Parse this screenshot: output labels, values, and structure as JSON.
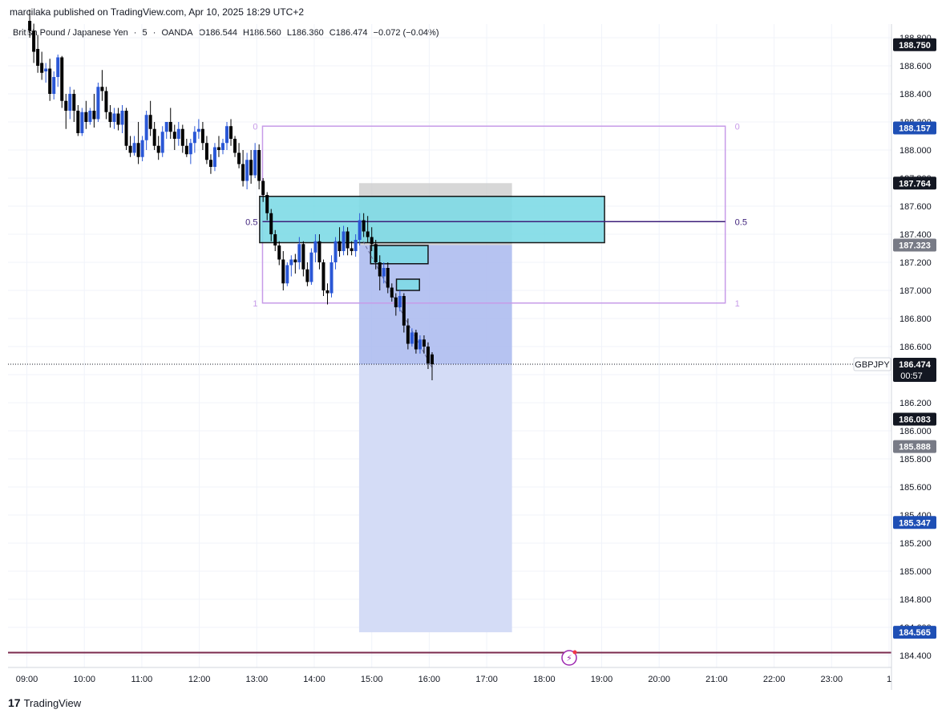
{
  "publisher_line": "marcilaka published on TradingView.com, Apr 10, 2025 18:29 UTC+2",
  "legend": {
    "symbol": "British Pound / Japanese Yen",
    "interval": "5",
    "exchange": "OANDA",
    "open": "O186.544",
    "high": "H186.560",
    "low": "L186.360",
    "close": "C186.474",
    "change": "−0.072 (−0.04%)"
  },
  "footer": {
    "brand": "TradingView",
    "logo": "17"
  },
  "colors": {
    "up": "#2a57d6",
    "down": "#000000",
    "fib": "#c79be8",
    "fib_mid": "#3d1f7a",
    "zone_fill": "#7fdbe6",
    "short_target": "#a9b8ee",
    "short_target_light": "#d2daf5",
    "short_stop": "#c9c9c9",
    "price_line": "#7b2a4d",
    "label_blue": "#1e4fb5",
    "label_black": "#131722",
    "label_gray": "#787b86"
  },
  "chart_data": {
    "type": "candlestick",
    "symbol": "GBPJPY",
    "x_ticks": [
      "09:00",
      "10:00",
      "11:00",
      "12:00",
      "13:00",
      "14:00",
      "15:00",
      "16:00",
      "17:00",
      "18:00",
      "19:00",
      "20:00",
      "21:00",
      "22:00",
      "23:00",
      "1"
    ],
    "y_ticks": [
      "188.800",
      "188.600",
      "188.400",
      "188.200",
      "188.000",
      "187.800",
      "187.600",
      "187.400",
      "187.200",
      "187.000",
      "186.800",
      "186.600",
      "186.400",
      "186.200",
      "186.000",
      "185.800",
      "185.600",
      "185.400",
      "185.200",
      "185.000",
      "184.800",
      "184.600",
      "184.400"
    ],
    "ylim": [
      184.35,
      188.87
    ],
    "price_labels": [
      {
        "text": "188.750",
        "value": 188.75,
        "style": "black"
      },
      {
        "text": "188.157",
        "value": 188.157,
        "style": "blue"
      },
      {
        "text": "187.764",
        "value": 187.764,
        "style": "black"
      },
      {
        "text": "187.323",
        "value": 187.323,
        "style": "gray"
      },
      {
        "text": "186.083",
        "value": 186.083,
        "style": "black"
      },
      {
        "text": "185.888",
        "value": 185.888,
        "style": "gray"
      },
      {
        "text": "185.347",
        "value": 185.347,
        "style": "blue"
      },
      {
        "text": "184.565",
        "value": 184.565,
        "style": "blue"
      }
    ],
    "last_price": {
      "symbol": "GBPJPY",
      "price": "186.474",
      "value": 186.474,
      "countdown": "00:57"
    },
    "candles": [
      {
        "t": 0.05,
        "o": 188.92,
        "h": 189.0,
        "c": 188.85,
        "l": 188.8
      },
      {
        "t": 0.12,
        "o": 188.85,
        "h": 188.9,
        "c": 188.7,
        "l": 188.62
      },
      {
        "t": 0.19,
        "o": 188.72,
        "h": 188.82,
        "c": 188.6,
        "l": 188.55
      },
      {
        "t": 0.26,
        "o": 188.62,
        "h": 188.7,
        "c": 188.55,
        "l": 188.5
      },
      {
        "t": 0.33,
        "o": 188.56,
        "h": 188.62,
        "c": 188.58,
        "l": 188.48
      },
      {
        "t": 0.4,
        "o": 188.58,
        "h": 188.65,
        "c": 188.4,
        "l": 188.35
      },
      {
        "t": 0.47,
        "o": 188.4,
        "h": 188.56,
        "c": 188.52,
        "l": 188.36
      },
      {
        "t": 0.54,
        "o": 188.52,
        "h": 188.68,
        "c": 188.66,
        "l": 188.45
      },
      {
        "t": 0.61,
        "o": 188.66,
        "h": 188.67,
        "c": 188.35,
        "l": 188.3
      },
      {
        "t": 0.68,
        "o": 188.35,
        "h": 188.4,
        "c": 188.28,
        "l": 188.15
      },
      {
        "t": 0.75,
        "o": 188.28,
        "h": 188.45,
        "c": 188.4,
        "l": 188.22
      },
      {
        "t": 0.82,
        "o": 188.4,
        "h": 188.43,
        "c": 188.28,
        "l": 188.2
      },
      {
        "t": 0.89,
        "o": 188.28,
        "h": 188.32,
        "c": 188.12,
        "l": 188.1
      },
      {
        "t": 0.96,
        "o": 188.12,
        "h": 188.3,
        "c": 188.27,
        "l": 188.1
      },
      {
        "t": 1.03,
        "o": 188.27,
        "h": 188.35,
        "c": 188.2,
        "l": 188.15
      },
      {
        "t": 1.1,
        "o": 188.2,
        "h": 188.3,
        "c": 188.28,
        "l": 188.18
      },
      {
        "t": 1.17,
        "o": 188.28,
        "h": 188.4,
        "c": 188.22,
        "l": 188.16
      },
      {
        "t": 1.24,
        "o": 188.22,
        "h": 188.48,
        "c": 188.45,
        "l": 188.2
      },
      {
        "t": 1.31,
        "o": 188.45,
        "h": 188.57,
        "c": 188.42,
        "l": 188.35
      },
      {
        "t": 1.38,
        "o": 188.42,
        "h": 188.45,
        "c": 188.27,
        "l": 188.22
      },
      {
        "t": 1.45,
        "o": 188.27,
        "h": 188.32,
        "c": 188.2,
        "l": 188.16
      },
      {
        "t": 1.52,
        "o": 188.2,
        "h": 188.3,
        "c": 188.26,
        "l": 188.15
      },
      {
        "t": 1.59,
        "o": 188.26,
        "h": 188.3,
        "c": 188.18,
        "l": 188.14
      },
      {
        "t": 1.66,
        "o": 188.18,
        "h": 188.32,
        "c": 188.28,
        "l": 188.12
      },
      {
        "t": 1.73,
        "o": 188.28,
        "h": 188.3,
        "c": 188.03,
        "l": 188.0
      },
      {
        "t": 1.8,
        "o": 188.03,
        "h": 188.1,
        "c": 187.98,
        "l": 187.95
      },
      {
        "t": 1.87,
        "o": 187.98,
        "h": 188.1,
        "c": 188.05,
        "l": 187.96
      },
      {
        "t": 1.94,
        "o": 188.05,
        "h": 188.2,
        "c": 187.95,
        "l": 187.9
      },
      {
        "t": 2.01,
        "o": 187.95,
        "h": 188.1,
        "c": 188.07,
        "l": 187.92
      },
      {
        "t": 2.08,
        "o": 188.07,
        "h": 188.28,
        "c": 188.25,
        "l": 188.0
      },
      {
        "t": 2.15,
        "o": 188.25,
        "h": 188.35,
        "c": 188.15,
        "l": 188.1
      },
      {
        "t": 2.22,
        "o": 188.15,
        "h": 188.2,
        "c": 188.03,
        "l": 188.0
      },
      {
        "t": 2.29,
        "o": 188.03,
        "h": 188.1,
        "c": 187.98,
        "l": 187.93
      },
      {
        "t": 2.36,
        "o": 187.98,
        "h": 188.17,
        "c": 188.13,
        "l": 187.95
      },
      {
        "t": 2.43,
        "o": 188.13,
        "h": 188.2,
        "c": 188.2,
        "l": 188.08
      },
      {
        "t": 2.5,
        "o": 188.2,
        "h": 188.3,
        "c": 188.13,
        "l": 188.08
      },
      {
        "t": 2.57,
        "o": 188.13,
        "h": 188.18,
        "c": 188.08,
        "l": 188.0
      },
      {
        "t": 2.64,
        "o": 188.08,
        "h": 188.2,
        "c": 188.15,
        "l": 188.03
      },
      {
        "t": 2.71,
        "o": 188.15,
        "h": 188.18,
        "c": 188.03,
        "l": 187.98
      },
      {
        "t": 2.78,
        "o": 188.03,
        "h": 188.08,
        "c": 187.97,
        "l": 187.95
      },
      {
        "t": 2.85,
        "o": 187.97,
        "h": 188.08,
        "c": 188.05,
        "l": 187.9
      },
      {
        "t": 2.92,
        "o": 188.05,
        "h": 188.17,
        "c": 188.13,
        "l": 187.98
      },
      {
        "t": 2.99,
        "o": 188.13,
        "h": 188.22,
        "c": 188.15,
        "l": 188.08
      },
      {
        "t": 3.06,
        "o": 188.15,
        "h": 188.2,
        "c": 188.05,
        "l": 188.0
      },
      {
        "t": 3.13,
        "o": 188.05,
        "h": 188.1,
        "c": 187.93,
        "l": 187.9
      },
      {
        "t": 3.2,
        "o": 187.93,
        "h": 187.97,
        "c": 187.88,
        "l": 187.83
      },
      {
        "t": 3.27,
        "o": 187.88,
        "h": 188.05,
        "c": 188.02,
        "l": 187.85
      },
      {
        "t": 3.34,
        "o": 188.02,
        "h": 188.1,
        "c": 188.0,
        "l": 187.95
      },
      {
        "t": 3.41,
        "o": 188.0,
        "h": 188.08,
        "c": 188.05,
        "l": 187.97
      },
      {
        "t": 3.48,
        "o": 188.05,
        "h": 188.2,
        "c": 188.17,
        "l": 188.0
      },
      {
        "t": 3.55,
        "o": 188.17,
        "h": 188.22,
        "c": 188.08,
        "l": 188.03
      },
      {
        "t": 3.62,
        "o": 188.08,
        "h": 188.1,
        "c": 187.98,
        "l": 187.95
      },
      {
        "t": 3.69,
        "o": 187.98,
        "h": 188.05,
        "c": 187.9,
        "l": 187.87
      },
      {
        "t": 3.76,
        "o": 187.9,
        "h": 188.0,
        "c": 187.78,
        "l": 187.74
      },
      {
        "t": 3.83,
        "o": 187.78,
        "h": 187.98,
        "c": 187.93,
        "l": 187.72
      },
      {
        "t": 3.9,
        "o": 187.93,
        "h": 188.0,
        "c": 187.82,
        "l": 187.76
      },
      {
        "t": 3.97,
        "o": 187.82,
        "h": 188.05,
        "c": 188.0,
        "l": 187.8
      },
      {
        "t": 4.04,
        "o": 188.0,
        "h": 188.04,
        "c": 187.78,
        "l": 187.72
      },
      {
        "t": 4.11,
        "o": 187.78,
        "h": 187.8,
        "c": 187.68,
        "l": 187.63
      },
      {
        "t": 4.18,
        "o": 187.68,
        "h": 187.7,
        "c": 187.55,
        "l": 187.5
      },
      {
        "t": 4.25,
        "o": 187.55,
        "h": 187.58,
        "c": 187.4,
        "l": 187.35
      },
      {
        "t": 4.32,
        "o": 187.4,
        "h": 187.43,
        "c": 187.32,
        "l": 187.28
      },
      {
        "t": 4.39,
        "o": 187.32,
        "h": 187.35,
        "c": 187.22,
        "l": 187.18
      },
      {
        "t": 4.46,
        "o": 187.22,
        "h": 187.28,
        "c": 187.05,
        "l": 187.0
      },
      {
        "t": 4.53,
        "o": 187.05,
        "h": 187.2,
        "c": 187.18,
        "l": 187.03
      },
      {
        "t": 4.6,
        "o": 187.18,
        "h": 187.25,
        "c": 187.22,
        "l": 187.1
      },
      {
        "t": 4.67,
        "o": 187.22,
        "h": 187.26,
        "c": 187.2,
        "l": 187.12
      },
      {
        "t": 4.74,
        "o": 187.2,
        "h": 187.38,
        "c": 187.33,
        "l": 187.15
      },
      {
        "t": 4.81,
        "o": 187.33,
        "h": 187.35,
        "c": 187.15,
        "l": 187.1
      },
      {
        "t": 4.88,
        "o": 187.15,
        "h": 187.2,
        "c": 187.06,
        "l": 187.03
      },
      {
        "t": 4.95,
        "o": 187.06,
        "h": 187.3,
        "c": 187.27,
        "l": 187.04
      },
      {
        "t": 5.02,
        "o": 187.27,
        "h": 187.4,
        "c": 187.35,
        "l": 187.2
      },
      {
        "t": 5.09,
        "o": 187.35,
        "h": 187.4,
        "c": 187.2,
        "l": 187.15
      },
      {
        "t": 5.16,
        "o": 187.2,
        "h": 187.22,
        "c": 187.0,
        "l": 186.96
      },
      {
        "t": 5.23,
        "o": 187.0,
        "h": 187.05,
        "c": 186.98,
        "l": 186.9
      },
      {
        "t": 5.3,
        "o": 186.98,
        "h": 187.25,
        "c": 187.2,
        "l": 186.95
      },
      {
        "t": 5.37,
        "o": 187.2,
        "h": 187.38,
        "c": 187.35,
        "l": 187.15
      },
      {
        "t": 5.44,
        "o": 187.35,
        "h": 187.45,
        "c": 187.28,
        "l": 187.24
      },
      {
        "t": 5.51,
        "o": 187.28,
        "h": 187.46,
        "c": 187.42,
        "l": 187.25
      },
      {
        "t": 5.58,
        "o": 187.42,
        "h": 187.45,
        "c": 187.3,
        "l": 187.25
      },
      {
        "t": 5.65,
        "o": 187.3,
        "h": 187.35,
        "c": 187.28,
        "l": 187.25
      },
      {
        "t": 5.72,
        "o": 187.28,
        "h": 187.4,
        "c": 187.36,
        "l": 187.24
      },
      {
        "t": 5.79,
        "o": 187.36,
        "h": 187.55,
        "c": 187.5,
        "l": 187.32
      },
      {
        "t": 5.86,
        "o": 187.5,
        "h": 187.55,
        "c": 187.42,
        "l": 187.38
      },
      {
        "t": 5.93,
        "o": 187.42,
        "h": 187.53,
        "c": 187.38,
        "l": 187.34
      },
      {
        "t": 6.0,
        "o": 187.38,
        "h": 187.45,
        "c": 187.33,
        "l": 187.28
      },
      {
        "t": 6.07,
        "o": 187.33,
        "h": 187.36,
        "c": 187.2,
        "l": 187.15
      },
      {
        "t": 6.14,
        "o": 187.2,
        "h": 187.25,
        "c": 187.1,
        "l": 187.0
      },
      {
        "t": 6.21,
        "o": 187.1,
        "h": 187.2,
        "c": 187.16,
        "l": 187.05
      },
      {
        "t": 6.28,
        "o": 187.16,
        "h": 187.2,
        "c": 187.02,
        "l": 186.98
      },
      {
        "t": 6.35,
        "o": 187.02,
        "h": 187.05,
        "c": 186.95,
        "l": 186.92
      },
      {
        "t": 6.42,
        "o": 186.95,
        "h": 186.98,
        "c": 186.88,
        "l": 186.82
      },
      {
        "t": 6.49,
        "o": 186.88,
        "h": 187.0,
        "c": 186.96,
        "l": 186.85
      },
      {
        "t": 6.56,
        "o": 186.96,
        "h": 186.98,
        "c": 186.75,
        "l": 186.7
      },
      {
        "t": 6.63,
        "o": 186.75,
        "h": 186.8,
        "c": 186.62,
        "l": 186.58
      },
      {
        "t": 6.7,
        "o": 186.62,
        "h": 186.73,
        "c": 186.7,
        "l": 186.6
      },
      {
        "t": 6.77,
        "o": 186.7,
        "h": 186.72,
        "c": 186.58,
        "l": 186.55
      },
      {
        "t": 6.84,
        "o": 186.58,
        "h": 186.68,
        "c": 186.65,
        "l": 186.55
      },
      {
        "t": 6.91,
        "o": 186.65,
        "h": 186.68,
        "c": 186.6,
        "l": 186.55
      },
      {
        "t": 6.98,
        "o": 186.6,
        "h": 186.63,
        "c": 186.48,
        "l": 186.44
      },
      {
        "t": 7.05,
        "o": 186.544,
        "h": 186.56,
        "c": 186.474,
        "l": 186.36
      }
    ],
    "fib_retracement": {
      "levels": [
        {
          "ratio": "0",
          "value": 188.17
        },
        {
          "ratio": "0.5",
          "value": 187.49
        },
        {
          "ratio": "1",
          "value": 186.91
        }
      ],
      "t_start": 4.1,
      "t_end": 12.15
    },
    "zones": [
      {
        "name": "zone-main",
        "top": 187.67,
        "bottom": 187.34,
        "t_start": 4.05,
        "t_end": 10.05
      },
      {
        "name": "zone-small-1",
        "top": 187.32,
        "bottom": 187.19,
        "t_start": 5.98,
        "t_end": 6.98
      },
      {
        "name": "zone-small-2",
        "top": 187.08,
        "bottom": 187.0,
        "t_start": 6.43,
        "t_end": 6.83
      }
    ],
    "short_position": {
      "entry": 187.323,
      "stop": 187.764,
      "target": 184.565,
      "current": 186.474,
      "t_start": 5.78,
      "t_end": 8.44
    },
    "horizontal_line": {
      "value": 184.42
    },
    "trend_line": {
      "t1": 5.85,
      "v1": 187.35,
      "t2": 7.05,
      "v2": 186.45
    }
  }
}
